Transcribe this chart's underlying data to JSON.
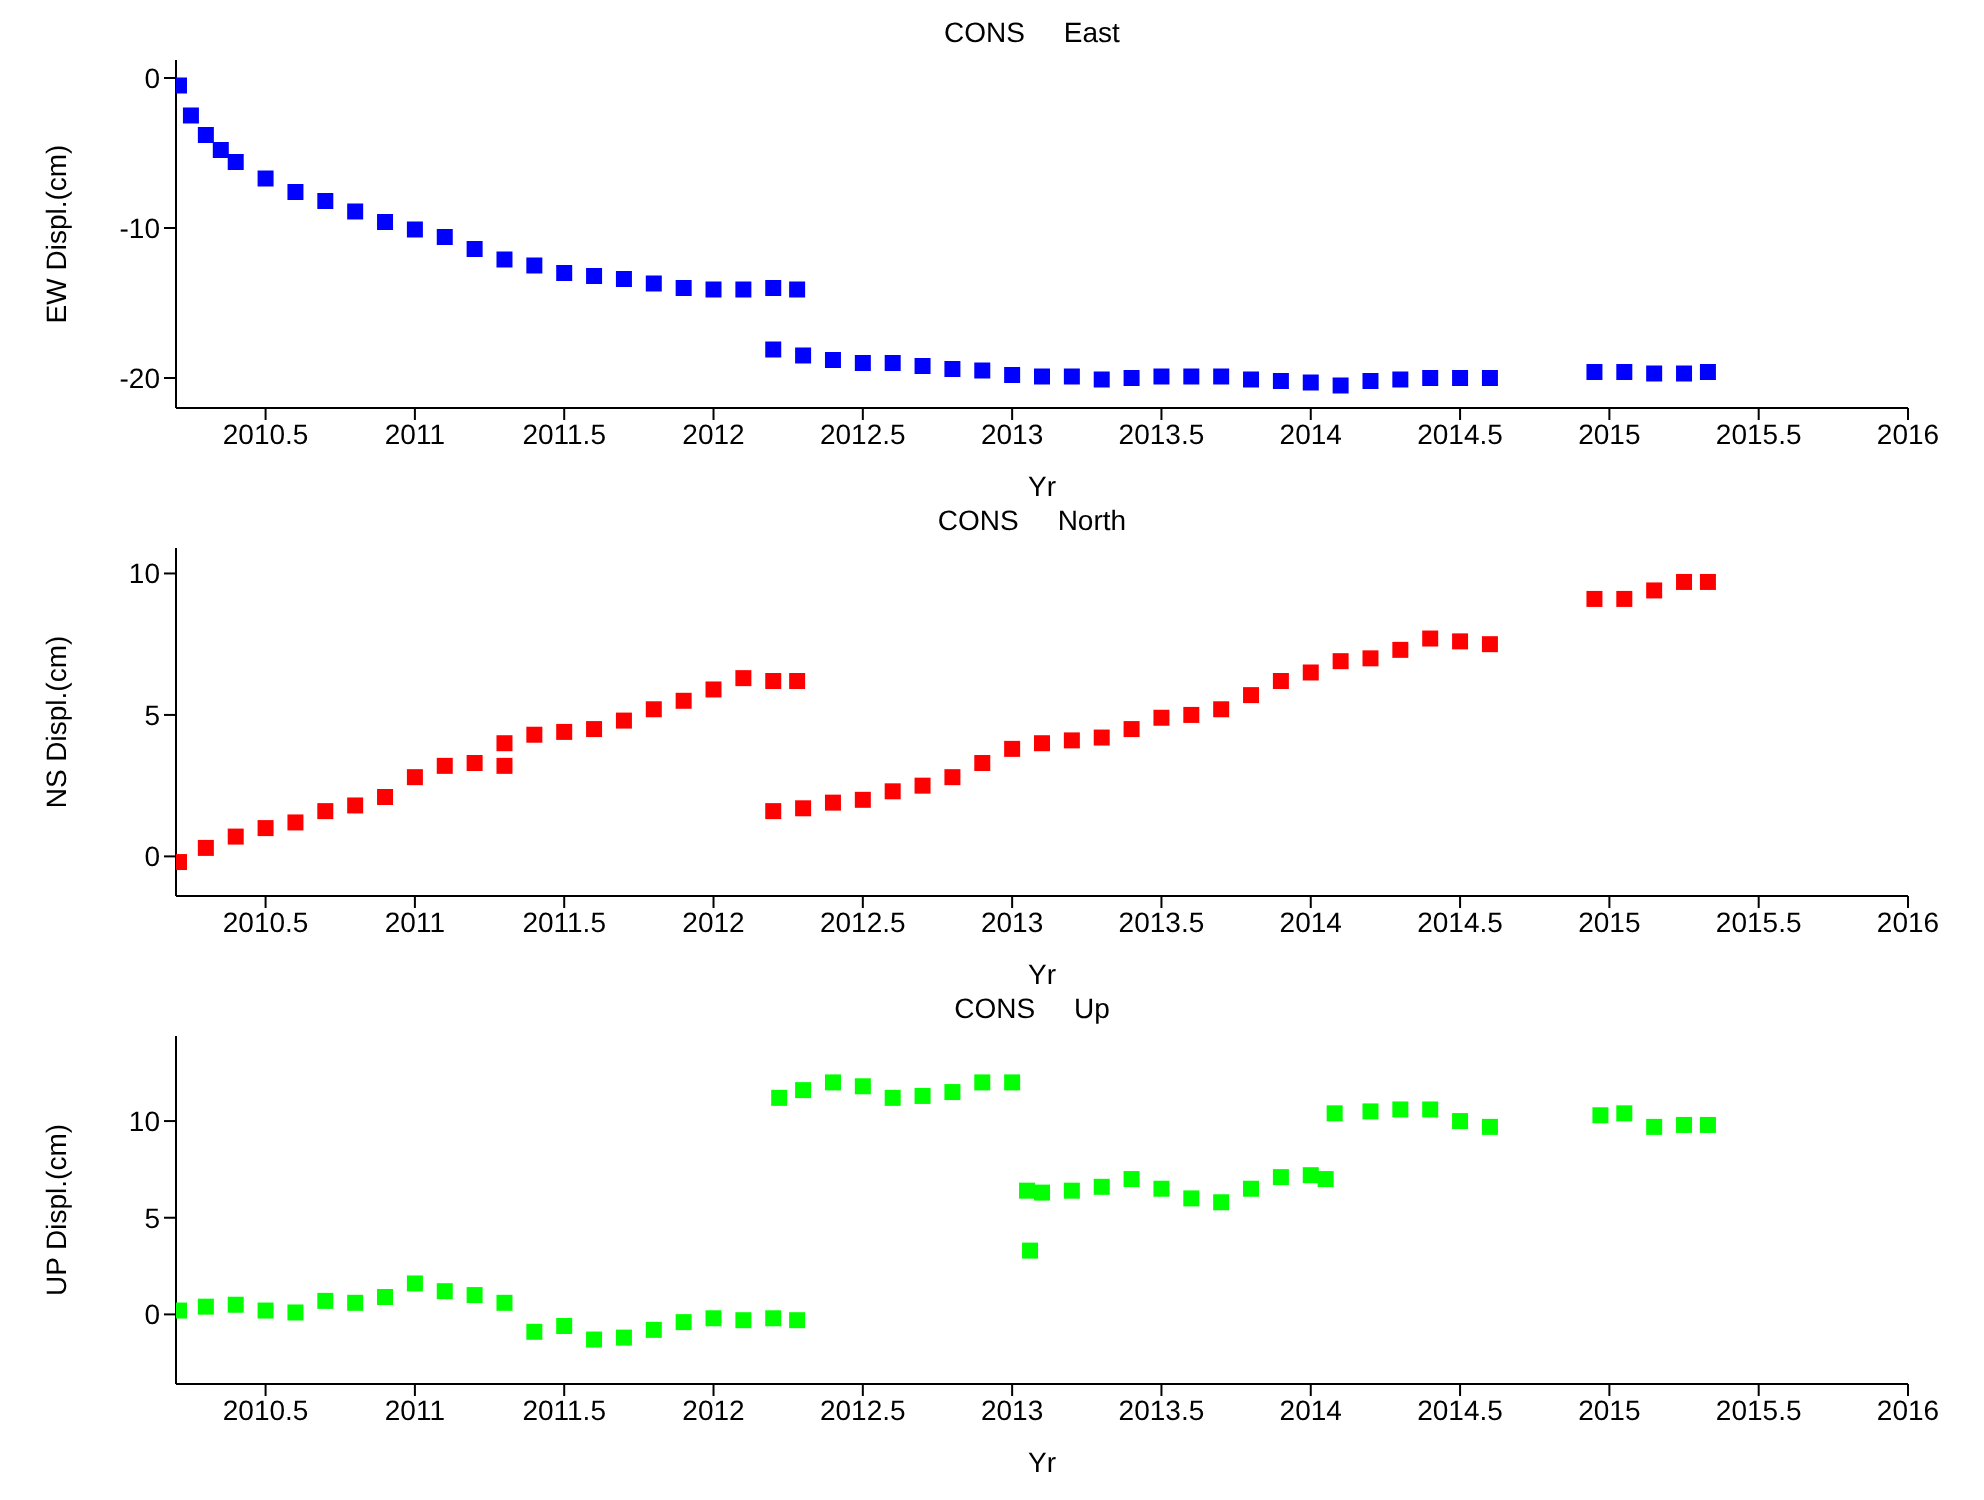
{
  "chart_data": [
    {
      "type": "scatter",
      "title": "CONS     East",
      "xlabel": "Yr",
      "ylabel": "EW Displ.(cm)",
      "xlim": [
        2010.2,
        2016
      ],
      "xticks": [
        2010.5,
        2011,
        2011.5,
        2012,
        2012.5,
        2013,
        2013.5,
        2014,
        2014.5,
        2015,
        2015.5,
        2016
      ],
      "ylim": [
        -22,
        1.2
      ],
      "yticks": [
        -20,
        -10,
        0
      ],
      "grid": false,
      "marker": "square",
      "series": [
        {
          "color": "#0000ff",
          "x": [
            2010.21,
            2010.25,
            2010.3,
            2010.35,
            2010.4,
            2010.5,
            2010.6,
            2010.7,
            2010.8,
            2010.9,
            2011,
            2011.1,
            2011.2,
            2011.3,
            2011.4,
            2011.5,
            2011.6,
            2011.7,
            2011.8,
            2011.9,
            2012,
            2012.1,
            2012.2,
            2012.28,
            2012.2,
            2012.3,
            2012.4,
            2012.5,
            2012.6,
            2012.7,
            2012.8,
            2012.9,
            2013,
            2013.1,
            2013.2,
            2013.3,
            2013.4,
            2013.5,
            2013.6,
            2013.7,
            2013.8,
            2013.9,
            2014,
            2014.1,
            2014.2,
            2014.3,
            2014.4,
            2014.5,
            2014.6,
            2014.95,
            2015.05,
            2015.15,
            2015.25,
            2015.33
          ],
          "values": [
            -0.5,
            -2.5,
            -3.8,
            -4.8,
            -5.6,
            -6.7,
            -7.6,
            -8.2,
            -8.9,
            -9.6,
            -10.1,
            -10.6,
            -11.4,
            -12.1,
            -12.5,
            -13,
            -13.2,
            -13.4,
            -13.7,
            -14,
            -14.1,
            -14.1,
            -14,
            -14.1,
            -18.1,
            -18.5,
            -18.8,
            -19,
            -19,
            -19.2,
            -19.4,
            -19.5,
            -19.8,
            -19.9,
            -19.9,
            -20.1,
            -20,
            -19.9,
            -19.9,
            -19.9,
            -20.1,
            -20.2,
            -20.3,
            -20.5,
            -20.2,
            -20.1,
            -20,
            -20,
            -20,
            -19.6,
            -19.6,
            -19.7,
            -19.7,
            -19.6
          ]
        }
      ]
    },
    {
      "type": "scatter",
      "title": "CONS     North",
      "xlabel": "Yr",
      "ylabel": "NS Displ.(cm)",
      "xlim": [
        2010.2,
        2016
      ],
      "xticks": [
        2010.5,
        2011,
        2011.5,
        2012,
        2012.5,
        2013,
        2013.5,
        2014,
        2014.5,
        2015,
        2015.5,
        2016
      ],
      "ylim": [
        -1.4,
        10.9
      ],
      "yticks": [
        0,
        5,
        10
      ],
      "grid": false,
      "marker": "square",
      "series": [
        {
          "color": "#ff0000",
          "x": [
            2010.21,
            2010.3,
            2010.4,
            2010.5,
            2010.6,
            2010.7,
            2010.8,
            2010.9,
            2011,
            2011.1,
            2011.2,
            2011.3,
            2011.3,
            2011.4,
            2011.5,
            2011.6,
            2011.7,
            2011.8,
            2011.9,
            2012,
            2012.1,
            2012.2,
            2012.28,
            2012.2,
            2012.3,
            2012.4,
            2012.5,
            2012.6,
            2012.7,
            2012.8,
            2012.9,
            2013,
            2013.1,
            2013.2,
            2013.3,
            2013.4,
            2013.5,
            2013.6,
            2013.7,
            2013.8,
            2013.9,
            2014,
            2014.1,
            2014.2,
            2014.3,
            2014.4,
            2014.5,
            2014.6,
            2014.95,
            2015.05,
            2015.15,
            2015.25,
            2015.33
          ],
          "values": [
            -0.2,
            0.3,
            0.7,
            1,
            1.2,
            1.6,
            1.8,
            2.1,
            2.8,
            3.2,
            3.3,
            3.2,
            4,
            4.3,
            4.4,
            4.5,
            4.8,
            5.2,
            5.5,
            5.9,
            6.3,
            6.2,
            6.2,
            1.6,
            1.7,
            1.9,
            2,
            2.3,
            2.5,
            2.8,
            3.3,
            3.8,
            4,
            4.1,
            4.2,
            4.5,
            4.9,
            5,
            5.2,
            5.7,
            6.2,
            6.5,
            6.9,
            7,
            7.3,
            7.7,
            7.6,
            7.5,
            9.1,
            9.1,
            9.4,
            9.7,
            9.7
          ]
        }
      ]
    },
    {
      "type": "scatter",
      "title": "CONS     Up",
      "xlabel": "Yr",
      "ylabel": "UP Displ.(cm)",
      "xlim": [
        2010.2,
        2016
      ],
      "xticks": [
        2010.5,
        2011,
        2011.5,
        2012,
        2012.5,
        2013,
        2013.5,
        2014,
        2014.5,
        2015,
        2015.5,
        2016
      ],
      "ylim": [
        -3.6,
        14.4
      ],
      "yticks": [
        0,
        5,
        10
      ],
      "grid": false,
      "marker": "square",
      "series": [
        {
          "color": "#00ff00",
          "x": [
            2010.21,
            2010.3,
            2010.4,
            2010.5,
            2010.6,
            2010.7,
            2010.8,
            2010.9,
            2011,
            2011.1,
            2011.2,
            2011.3,
            2011.4,
            2011.5,
            2011.6,
            2011.7,
            2011.8,
            2011.9,
            2012,
            2012.1,
            2012.2,
            2012.28,
            2012.22,
            2012.3,
            2012.4,
            2012.5,
            2012.6,
            2012.7,
            2012.8,
            2012.9,
            2013,
            2013.05,
            2013.06,
            2013.1,
            2013.2,
            2013.3,
            2013.4,
            2013.5,
            2013.6,
            2013.7,
            2013.8,
            2013.9,
            2014,
            2014.05,
            2014.08,
            2014.2,
            2014.3,
            2014.4,
            2014.5,
            2014.6,
            2014.97,
            2015.05,
            2015.15,
            2015.25,
            2015.33
          ],
          "values": [
            0.2,
            0.4,
            0.5,
            0.2,
            0.1,
            0.7,
            0.6,
            0.9,
            1.6,
            1.2,
            1,
            0.6,
            -0.9,
            -0.6,
            -1.3,
            -1.2,
            -0.8,
            -0.4,
            -0.2,
            -0.3,
            -0.2,
            -0.3,
            11.2,
            11.6,
            12,
            11.8,
            11.2,
            11.3,
            11.5,
            12,
            12,
            6.4,
            3.3,
            6.3,
            6.4,
            6.6,
            7,
            6.5,
            6,
            5.8,
            6.5,
            7.1,
            7.2,
            7,
            10.4,
            10.5,
            10.6,
            10.6,
            10,
            9.7,
            10.3,
            10.4,
            9.7,
            9.8,
            9.8
          ]
        }
      ]
    }
  ]
}
